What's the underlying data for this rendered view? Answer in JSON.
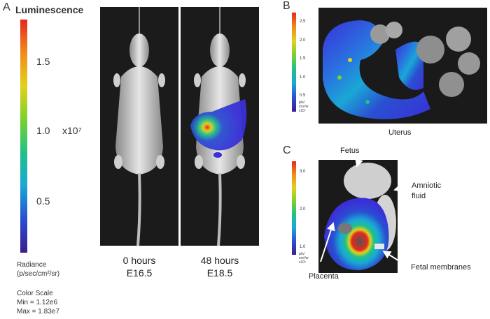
{
  "panel_a": {
    "letter": "A",
    "title": "Luminescence",
    "colorbar": {
      "gradient": [
        "#3a1e8c",
        "#2a4fd1",
        "#1aa7d6",
        "#1fc18a",
        "#7bd12c",
        "#e2d11b",
        "#f08c1a",
        "#e5281e"
      ],
      "ticks": [
        "1.5",
        "1.0",
        "0.5"
      ],
      "multiplier": "x10⁷",
      "radiance_label": "Radiance",
      "radiance_unit": "(p/sec/cm²/sr)",
      "color_scale_label": "Color Scale",
      "min": "Min = 1.12e6",
      "max": "Max = 1.83e7"
    },
    "images": [
      {
        "time": "0 hours",
        "stage": "E16.5"
      },
      {
        "time": "48 hours",
        "stage": "E18.5"
      }
    ]
  },
  "panel_b": {
    "letter": "B",
    "colorbar": {
      "ticks": [
        "2.5",
        "2.0",
        "1.5",
        "1.0",
        "0.5"
      ],
      "unit_lines": [
        "p/s/",
        "cm²/sr",
        "x10⁷"
      ]
    },
    "caption": "Uterus"
  },
  "panel_c": {
    "letter": "C",
    "colorbar": {
      "ticks": [
        "3.0",
        "2.0",
        "1.0"
      ],
      "unit_lines": [
        "p/s/",
        "cm²/sr",
        "x10⁵"
      ]
    },
    "annotations": {
      "fetus": "Fetus",
      "amniotic_1": "Amniotic",
      "amniotic_2": "fluid",
      "placenta": "Placenta",
      "membranes": "Fetal membranes"
    }
  }
}
